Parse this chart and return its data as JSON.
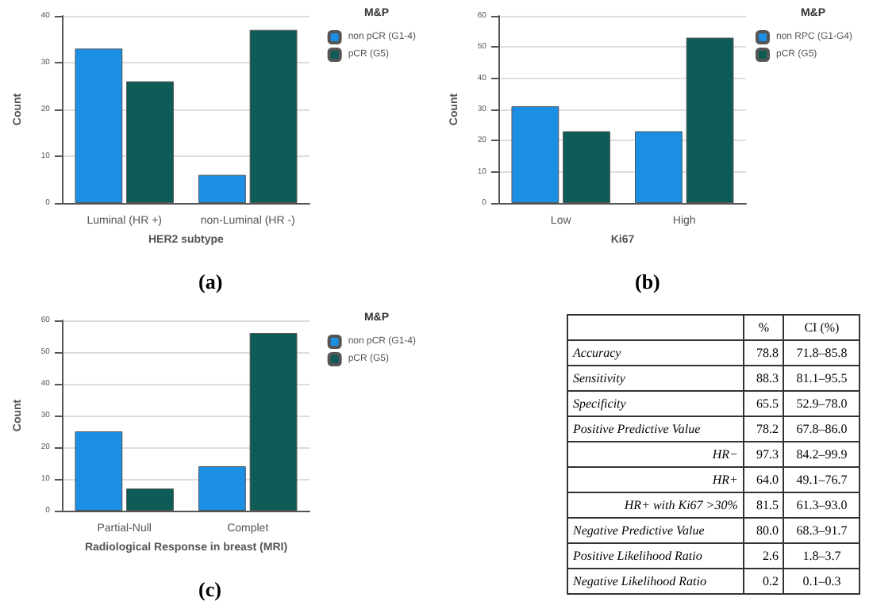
{
  "chart_data": [
    {
      "type": "bar",
      "categories": [
        "Luminal (HR +)",
        "non-Luminal (HR -)"
      ],
      "xlabel": "HER2 subtype",
      "ylabel": "Count",
      "legend_title": "M&P",
      "legend": "top right",
      "grid": "y",
      "ylim": [
        0,
        40
      ],
      "yticks": [
        0,
        10,
        20,
        30,
        40
      ],
      "annotations": [
        "(a)"
      ],
      "series": [
        {
          "name": "non pCR (G1-4)",
          "color": "#1a8fe3",
          "values": [
            33,
            6
          ]
        },
        {
          "name": "pCR (G5)",
          "color": "#0d5c57",
          "values": [
            26,
            37
          ]
        }
      ]
    },
    {
      "type": "bar",
      "categories": [
        "Low",
        "High"
      ],
      "xlabel": "Ki67",
      "ylabel": "Count",
      "legend_title": "M&P",
      "legend": "top right",
      "grid": "y",
      "ylim": [
        0,
        60
      ],
      "yticks": [
        0,
        10,
        20,
        30,
        40,
        50,
        60
      ],
      "annotations": [
        "(b)"
      ],
      "series": [
        {
          "name": "non RPC (G1-G4)",
          "color": "#1a8fe3",
          "values": [
            31,
            23
          ]
        },
        {
          "name": "pCR (G5)",
          "color": "#0d5c57",
          "values": [
            23,
            53
          ]
        }
      ]
    },
    {
      "type": "bar",
      "categories": [
        "Partial-Null",
        "Complet"
      ],
      "xlabel": "Radiological Response in breast (MRI)",
      "ylabel": "Count",
      "legend_title": "M&P",
      "legend": "top right",
      "grid": "y",
      "ylim": [
        0,
        60
      ],
      "yticks": [
        0,
        10,
        20,
        30,
        40,
        50,
        60
      ],
      "annotations": [
        "(c)"
      ],
      "series": [
        {
          "name": "non pCR (G1-4)",
          "color": "#1a8fe3",
          "values": [
            25,
            14
          ]
        },
        {
          "name": "pCR (G5)",
          "color": "#0d5c57",
          "values": [
            7,
            56
          ]
        }
      ]
    },
    {
      "type": "other",
      "categories": [
        "Accuracy",
        "Sensitivity",
        "Specificity",
        "Positive Predictive Value",
        "HR−",
        "HR+",
        "HR+ with Ki67 >30%",
        "Negative Predictive Value",
        "Positive Likelihood Ratio",
        "Negative Likelihood Ratio"
      ],
      "series": [
        {
          "name": "%",
          "values": [
            78.8,
            88.3,
            65.5,
            78.2,
            97.3,
            64.0,
            81.5,
            80.0,
            2.6,
            0.2
          ],
          "value_labels": [
            "78.8",
            "88.3",
            "65.5",
            "78.2",
            "97.3",
            "64.0",
            "81.5",
            "80.0",
            "2.6",
            "0.2"
          ]
        },
        {
          "name": "CI (%)",
          "values": [
            null,
            null,
            null,
            null,
            null,
            null,
            null,
            null,
            null,
            null
          ],
          "value_labels": [
            "71.8–85.8",
            "81.1–95.5",
            "52.9–78.0",
            "67.8–86.0",
            "84.2–99.9",
            "49.1–76.7",
            "61.3–93.0",
            "68.3–91.7",
            "1.8–3.7",
            "0.1–0.3"
          ]
        }
      ]
    }
  ]
}
